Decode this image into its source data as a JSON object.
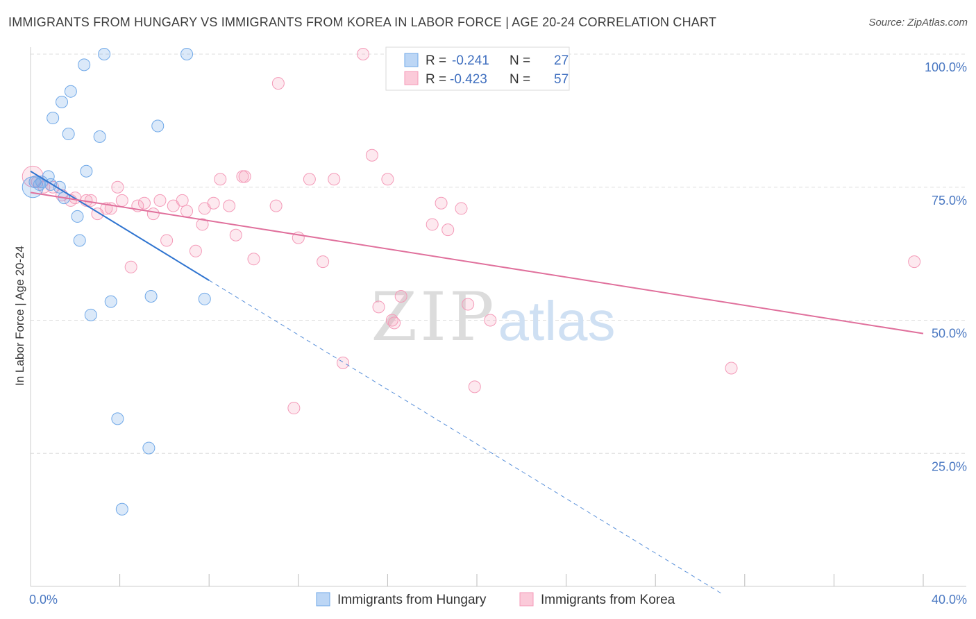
{
  "chart_data": {
    "type": "scatter",
    "title": "IMMIGRANTS FROM HUNGARY VS IMMIGRANTS FROM KOREA IN LABOR FORCE | AGE 20-24 CORRELATION CHART",
    "source": "Source: ZipAtlas.com",
    "ylabel": "In Labor Force | Age 20-24",
    "xlim": [
      0,
      40
    ],
    "ylim": [
      0,
      100
    ],
    "x_tick_labels": [
      "0.0%",
      "40.0%"
    ],
    "y_ticks": [
      25,
      50,
      75,
      100
    ],
    "y_tick_labels": [
      "25.0%",
      "50.0%",
      "75.0%",
      "100.0%"
    ],
    "watermark": {
      "zip": "ZIP",
      "atlas": "atlas"
    },
    "series": [
      {
        "name": "Immigrants from Hungary",
        "color": "#6fa8e8",
        "line_color": "#2f74d0",
        "legend_r_label": "R =",
        "legend_r_value": "-0.241",
        "legend_n_label": "N =",
        "legend_n_value": "27",
        "trend": {
          "x0": 0,
          "y0": 78,
          "x1": 8,
          "y1": 57.5,
          "dash_to_x": 31
        },
        "points": [
          [
            0.1,
            75
          ],
          [
            0.4,
            75.5
          ],
          [
            0.5,
            76
          ],
          [
            0.8,
            77
          ],
          [
            1.0,
            88
          ],
          [
            1.3,
            75
          ],
          [
            1.4,
            91
          ],
          [
            1.5,
            73
          ],
          [
            1.7,
            85
          ],
          [
            1.8,
            93
          ],
          [
            2.1,
            69.5
          ],
          [
            2.2,
            65
          ],
          [
            2.4,
            98
          ],
          [
            2.5,
            78
          ],
          [
            2.7,
            51
          ],
          [
            3.1,
            84.5
          ],
          [
            3.3,
            100
          ],
          [
            3.6,
            53.5
          ],
          [
            3.9,
            31.5
          ],
          [
            4.1,
            14.5
          ],
          [
            5.3,
            26
          ],
          [
            5.4,
            54.5
          ],
          [
            5.7,
            86.5
          ],
          [
            7.0,
            100
          ],
          [
            7.8,
            54
          ],
          [
            0.2,
            76
          ],
          [
            0.9,
            75.5
          ]
        ]
      },
      {
        "name": "Immigrants from Korea",
        "color": "#f49ab8",
        "line_color": "#e0709c",
        "legend_r_label": "R =",
        "legend_r_value": "-0.423",
        "legend_n_label": "N =",
        "legend_n_value": "57",
        "trend": {
          "x0": 0,
          "y0": 74,
          "x1": 40,
          "y1": 47.5
        },
        "points": [
          [
            0.1,
            77
          ],
          [
            0.6,
            75
          ],
          [
            1.0,
            75
          ],
          [
            1.4,
            73.5
          ],
          [
            1.8,
            72.5
          ],
          [
            2.0,
            73
          ],
          [
            2.5,
            72.5
          ],
          [
            2.7,
            72.5
          ],
          [
            3.0,
            70
          ],
          [
            3.4,
            71
          ],
          [
            3.6,
            71
          ],
          [
            3.9,
            75
          ],
          [
            4.1,
            72.5
          ],
          [
            4.5,
            60
          ],
          [
            4.8,
            71.5
          ],
          [
            5.1,
            72
          ],
          [
            5.5,
            70
          ],
          [
            5.8,
            72.5
          ],
          [
            6.1,
            65
          ],
          [
            6.4,
            71.5
          ],
          [
            6.8,
            72.5
          ],
          [
            7.0,
            70.5
          ],
          [
            7.4,
            63
          ],
          [
            7.7,
            68
          ],
          [
            7.8,
            71
          ],
          [
            8.2,
            72
          ],
          [
            8.5,
            76.5
          ],
          [
            8.9,
            71.5
          ],
          [
            9.2,
            66
          ],
          [
            9.5,
            77
          ],
          [
            9.6,
            77
          ],
          [
            10.0,
            61.5
          ],
          [
            11.0,
            71.5
          ],
          [
            11.1,
            94.5
          ],
          [
            11.8,
            33.5
          ],
          [
            12.0,
            65.5
          ],
          [
            12.5,
            76.5
          ],
          [
            13.1,
            61
          ],
          [
            13.6,
            76.5
          ],
          [
            14.0,
            42
          ],
          [
            14.9,
            100
          ],
          [
            15.3,
            81
          ],
          [
            15.6,
            52.5
          ],
          [
            16.0,
            76.5
          ],
          [
            16.2,
            50
          ],
          [
            16.3,
            49.5
          ],
          [
            16.6,
            54.5
          ],
          [
            18.0,
            68
          ],
          [
            18.4,
            72
          ],
          [
            18.7,
            67
          ],
          [
            19.3,
            71
          ],
          [
            19.6,
            53
          ],
          [
            19.9,
            37.5
          ],
          [
            20.6,
            50
          ],
          [
            31.4,
            41
          ],
          [
            39.6,
            61
          ],
          [
            0.3,
            76
          ]
        ]
      }
    ]
  }
}
